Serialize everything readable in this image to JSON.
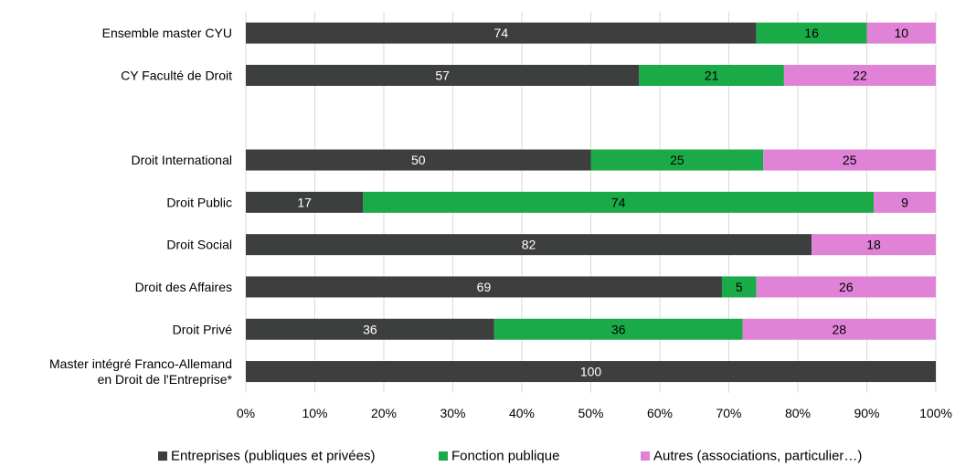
{
  "chart_data": {
    "type": "bar",
    "orientation": "horizontal",
    "stacked": true,
    "title": "",
    "xlabel": "",
    "ylabel": "",
    "xlim": [
      0,
      100
    ],
    "grid": "vertical",
    "legend_position": "bottom",
    "categories": [
      "Ensemble master CYU",
      "CY Faculté de Droit",
      "",
      "Droit International",
      "Droit Public",
      "Droit Social",
      "Droit des Affaires",
      "Droit Privé",
      "Master intégré Franco-Allemand\nen Droit de l'Entreprise*"
    ],
    "series": [
      {
        "name": "Entreprises (publiques et privées)",
        "color": "#3c3f3d",
        "label_color": "#ffffff",
        "values": [
          74,
          57,
          null,
          50,
          17,
          82,
          69,
          36,
          100
        ]
      },
      {
        "name": "Fonction publique",
        "color": "#1aab48",
        "label_color": "#000000",
        "values": [
          16,
          21,
          null,
          25,
          74,
          0,
          5,
          36,
          0
        ]
      },
      {
        "name": "Autres (associations, particulier…)",
        "color": "#e083d6",
        "label_color": "#000000",
        "values": [
          10,
          22,
          null,
          25,
          9,
          18,
          26,
          28,
          0
        ]
      }
    ],
    "x_ticks": [
      "0%",
      "10%",
      "20%",
      "30%",
      "40%",
      "50%",
      "60%",
      "70%",
      "80%",
      "90%",
      "100%"
    ]
  }
}
